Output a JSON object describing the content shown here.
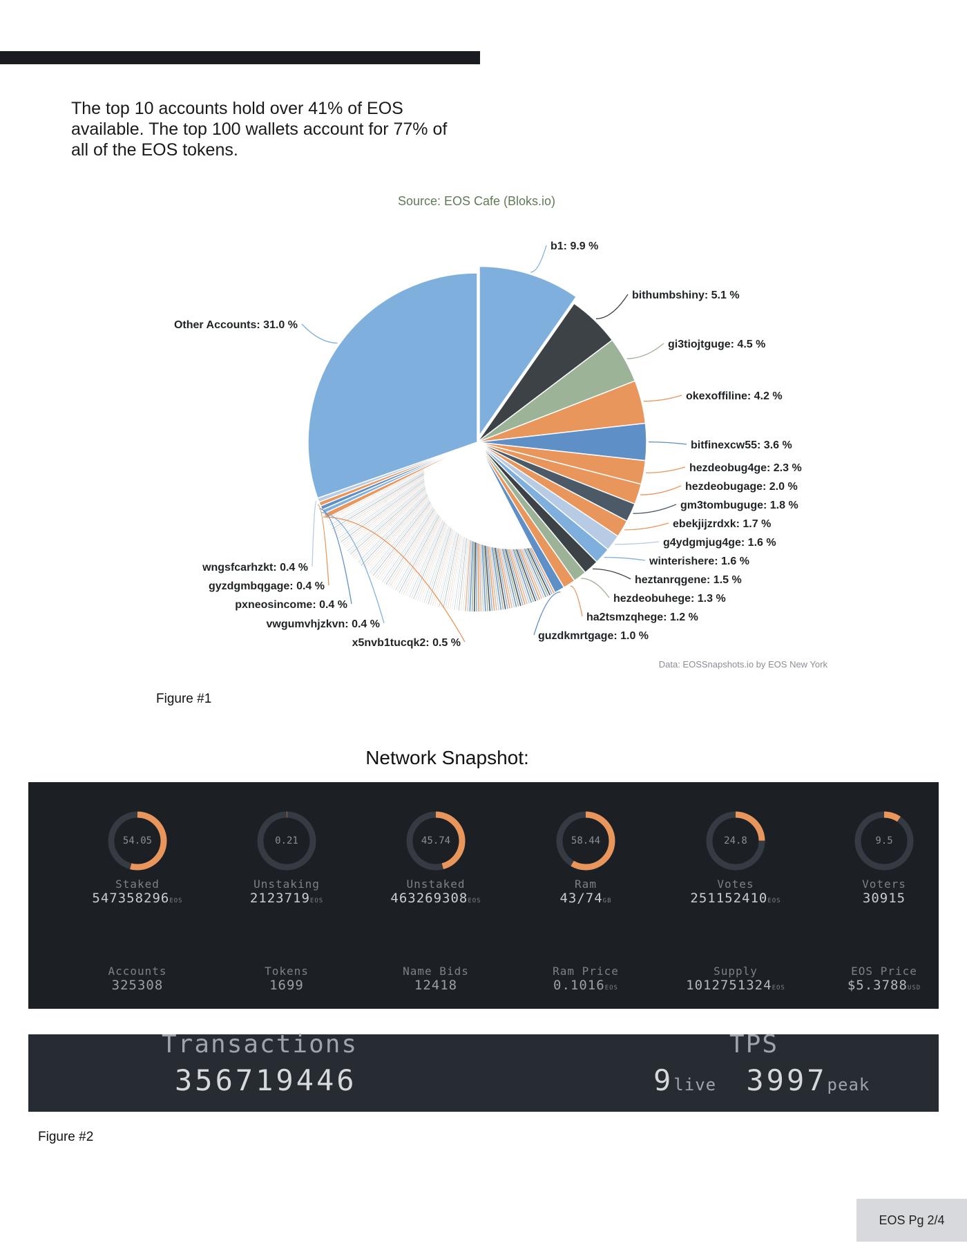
{
  "intro_text": "The top 10 accounts hold over 41% of EOS available. The top 100 wallets account for 77% of all of the EOS tokens.",
  "chart_source": "Source: EOS Cafe (Bloks.io)",
  "chart_credit": "Data: EOSSnapshots.io by EOS New York",
  "figure1_caption": "Figure #1",
  "network_title": "Network Snapshot:",
  "figure2_caption": "Figure #2",
  "page_label": "EOS Pg 2/4",
  "colors": {
    "blue": "#7fb0dd",
    "dark": "#3d4246",
    "green": "#9db398",
    "orange": "#e9965c",
    "steel": "#5f8fc7",
    "gauge_track": "#363b43",
    "gauge_fill": "#e9965c"
  },
  "chart_data": {
    "type": "pie",
    "title": "Source: EOS Cafe (Bloks.io)",
    "slices": [
      {
        "name": "b1",
        "value": 9.9,
        "label": "b1: 9.9 %",
        "color": "#7fb0dd"
      },
      {
        "name": "bithumbshiny",
        "value": 5.1,
        "label": "bithumbshiny: 5.1 %",
        "color": "#3d4246"
      },
      {
        "name": "gi3tiojtguge",
        "value": 4.5,
        "label": "gi3tiojtguge: 4.5 %",
        "color": "#9db398"
      },
      {
        "name": "okexoffiline",
        "value": 4.2,
        "label": "okexoffiline: 4.2 %",
        "color": "#e9965c"
      },
      {
        "name": "bitfinexcw55",
        "value": 3.6,
        "label": "bitfinexcw55: 3.6 %",
        "color": "#5f8fc7"
      },
      {
        "name": "hezdeobug4ge",
        "value": 2.3,
        "label": "hezdeobug4ge: 2.3 %",
        "color": "#e9965c"
      },
      {
        "name": "hezdeobugage",
        "value": 2.0,
        "label": "hezdeobugage: 2.0 %",
        "color": "#e9965c"
      },
      {
        "name": "gm3tombuguge",
        "value": 1.8,
        "label": "gm3tombuguge: 1.8 %",
        "color": "#4c5a68"
      },
      {
        "name": "ebekjijzrdxk",
        "value": 1.7,
        "label": "ebekjijzrdxk: 1.7 %",
        "color": "#e9965c"
      },
      {
        "name": "g4ydgmjug4ge",
        "value": 1.6,
        "label": "g4ydgmjug4ge: 1.6 %",
        "color": "#b8cbe4"
      },
      {
        "name": "winterishere",
        "value": 1.6,
        "label": "winterishere: 1.6 %",
        "color": "#7fb0dd"
      },
      {
        "name": "heztanrqgene",
        "value": 1.5,
        "label": "heztanrqgene: 1.5 %",
        "color": "#3d4246"
      },
      {
        "name": "hezdeobuhege",
        "value": 1.3,
        "label": "hezdeobuhege: 1.3 %",
        "color": "#9db398"
      },
      {
        "name": "ha2tsmzqhege",
        "value": 1.2,
        "label": "ha2tsmzqhege: 1.2 %",
        "color": "#e9965c"
      },
      {
        "name": "guzdkmrtgage",
        "value": 1.0,
        "label": "guzdkmrtgage: 1.0 %",
        "color": "#5f8fc7"
      },
      {
        "name": "small_accounts",
        "value": 25.7,
        "label": "",
        "color": "#ffffff"
      },
      {
        "name": "x5nvb1tucqk2",
        "value": 0.5,
        "label": "x5nvb1tucqk2: 0.5 %",
        "color": "#e9965c"
      },
      {
        "name": "vwgumvhjzkvn",
        "value": 0.4,
        "label": "vwgumvhjzkvn: 0.4 %",
        "color": "#7fb0dd"
      },
      {
        "name": "pxneosincome",
        "value": 0.4,
        "label": "pxneosincome: 0.4 %",
        "color": "#5f8fc7"
      },
      {
        "name": "gyzdgmbqgage",
        "value": 0.4,
        "label": "gyzdgmbqgage: 0.4 %",
        "color": "#e9965c"
      },
      {
        "name": "wngsfcarhzkt",
        "value": 0.4,
        "label": "wngsfcarhzkt: 0.4 %",
        "color": "#b8cbe4"
      },
      {
        "name": "Other Accounts",
        "value": 31.0,
        "label": "Other Accounts: 31.0 %",
        "color": "#7fb0dd"
      }
    ]
  },
  "network_stats": [
    {
      "gauge": "54.05",
      "label": "Staked",
      "value": "547358296",
      "unit": "EOS"
    },
    {
      "gauge": "0.21",
      "label": "Unstaking",
      "value": "2123719",
      "unit": "EOS"
    },
    {
      "gauge": "45.74",
      "label": "Unstaked",
      "value": "463269308",
      "unit": "EOS"
    },
    {
      "gauge": "58.44",
      "label": "Ram",
      "value": "43/74",
      "unit": "GB"
    },
    {
      "gauge": "24.8",
      "label": "Votes",
      "value": "251152410",
      "unit": "EOS"
    },
    {
      "gauge": "9.5",
      "label": "Voters",
      "value": "30915",
      "unit": ""
    }
  ],
  "network_stats2": [
    {
      "label": "Accounts",
      "value": "325308",
      "unit": ""
    },
    {
      "label": "Tokens",
      "value": "1699",
      "unit": ""
    },
    {
      "label": "Name Bids",
      "value": "12418",
      "unit": ""
    },
    {
      "label": "Ram Price",
      "value": "0.1016",
      "unit": "EOS"
    },
    {
      "label": "Supply",
      "value": "1012751324",
      "unit": "EOS"
    },
    {
      "label": "EOS Price",
      "value": "$5.3788",
      "unit": "USD"
    }
  ],
  "transactions": {
    "title": "Transactions",
    "value": "356719446"
  },
  "tps": {
    "title": "TPS",
    "live": "9",
    "live_label": "live",
    "peak": "3997",
    "peak_label": "peak"
  }
}
